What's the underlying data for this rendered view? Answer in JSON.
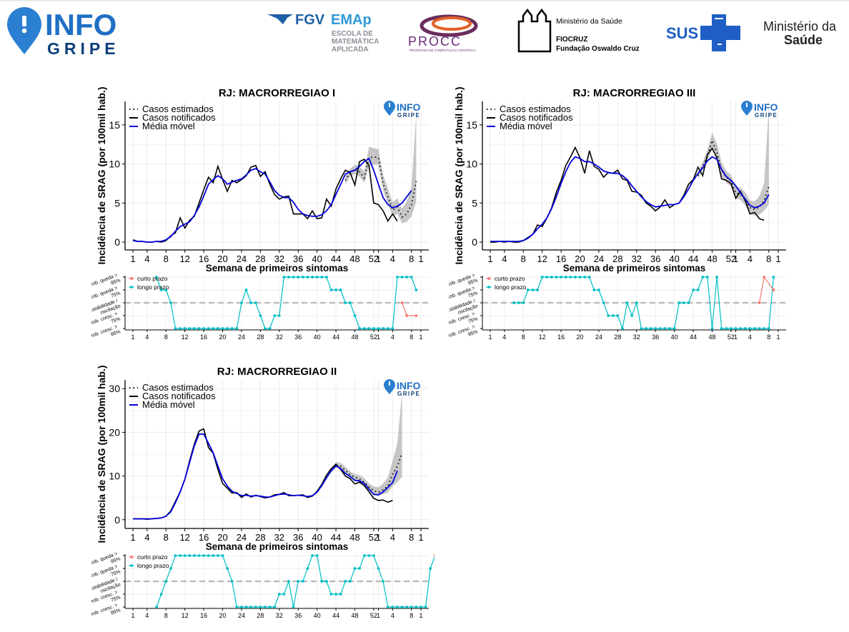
{
  "header": {
    "infogripe_logo": {
      "word1": "INFO",
      "word2": "GRIPE",
      "icon": "location-pin-exclamation-icon"
    },
    "fgv_logo": {
      "brand": "FGV",
      "emap": "EMAp",
      "line1": "ESCOLA DE",
      "line2": "MATEMÁTICA",
      "line3": "APLICADA"
    },
    "procc_logo": {
      "brand": "PROCC",
      "tagline": "PROGRAMA DE COMPUTAÇÃO CIENTÍFICA"
    },
    "fiocruz_logo": {
      "ministry": "Ministério da Saúde",
      "name": "FIOCRUZ",
      "full": "Fundação Oswaldo Cruz"
    },
    "sus_logo": {
      "text": "SUS",
      "icon": "cross-icon"
    },
    "ministerio_logo": {
      "line1": "Ministério da",
      "line2": "Saúde"
    }
  },
  "colors": {
    "estimated": "#000000",
    "notified": "#000000",
    "moving_avg": "#0000dd",
    "band": "#b3b3b3",
    "curto": "#f8766d",
    "longo": "#00bfc4",
    "dashed": "#bdbdbd",
    "brand_blue": "#1f6fc5",
    "brand_navy": "#0d3f7a"
  },
  "legend": {
    "estimated": "Casos estimados",
    "notified": "Casos notificados",
    "moving_avg": "Média móvel"
  },
  "ylabel": "Incidência de SRAG (por 100mil hab.)",
  "xlabel": "Semana de primeiros sintomas",
  "x_ticks": [
    "1",
    "4",
    "8",
    "12",
    "16",
    "20",
    "24",
    "28",
    "32",
    "36",
    "40",
    "44",
    "48",
    "52",
    "1",
    "4",
    "8",
    "1"
  ],
  "trend_levels": [
    "Prob. cresc. > 95%",
    "Prob. cresc. > 75%",
    "Estabilidade / oscilação",
    "Prob. queda > 75%",
    "Prob. queda > 95%"
  ],
  "trend_legend": {
    "curto": "curto prazo",
    "longo": "longo prazo"
  },
  "watermark": {
    "word1": "INFO",
    "word2": "GRIPE"
  },
  "chart_data": [
    {
      "type": "line",
      "title": "RJ: MACRORREGIAO I",
      "ylim": [
        -1,
        18
      ],
      "yticks": [
        0,
        5,
        10,
        15
      ],
      "notified": [
        0.3,
        0.1,
        0.1,
        0.0,
        0.0,
        0.1,
        0.0,
        0.2,
        0.8,
        1.2,
        3.1,
        1.8,
        2.8,
        3.3,
        5.0,
        6.7,
        8.3,
        7.6,
        9.7,
        8.0,
        6.5,
        7.9,
        7.6,
        8.0,
        8.5,
        9.6,
        9.8,
        8.4,
        9.0,
        7.4,
        6.1,
        5.5,
        5.8,
        5.9,
        3.6,
        3.6,
        3.6,
        3.0,
        4.0,
        3.0,
        3.1,
        5.5,
        4.6,
        6.8,
        8.1,
        9.2,
        8.9,
        7.3,
        10.3,
        10.6,
        9.8,
        5.0,
        4.8,
        4.0,
        2.7,
        3.6,
        2.7
      ],
      "moving_avg": [
        0.2,
        0.1,
        0.1,
        0.0,
        0.0,
        0.1,
        0.1,
        0.3,
        0.7,
        1.4,
        2.0,
        2.3,
        2.6,
        3.4,
        4.5,
        5.9,
        7.4,
        8.0,
        8.5,
        8.1,
        7.4,
        7.7,
        7.9,
        8.1,
        8.6,
        9.2,
        9.4,
        9.0,
        8.7,
        7.7,
        6.6,
        6.0,
        5.7,
        5.7,
        5.1,
        4.2,
        3.6,
        3.4,
        3.3,
        3.3,
        3.5,
        4.0,
        4.8,
        6.1,
        7.4,
        8.7,
        9.0,
        9.2,
        9.7,
        10.3,
        10.7,
        9.2,
        7.4,
        5.7,
        4.8,
        4.4,
        4.6,
        5.0,
        5.8,
        6.6
      ],
      "estimated_from": 45,
      "estimated": [
        7.9,
        8.9,
        9.3,
        9.0,
        8.2,
        10.8,
        10.9,
        10.8,
        7.5,
        5.8,
        4.1,
        4.5,
        3.2,
        3.6,
        4.8,
        7.8
      ],
      "band_low": [
        7.4,
        8.4,
        8.7,
        8.4,
        7.6,
        9.7,
        9.9,
        9.9,
        6.6,
        4.9,
        3.3,
        3.6,
        2.4,
        2.6,
        3.3,
        5.2
      ],
      "band_high": [
        8.4,
        9.4,
        9.9,
        9.7,
        9.0,
        12.2,
        12.0,
        11.9,
        8.6,
        6.9,
        5.1,
        5.6,
        4.3,
        5.2,
        7.0,
        16.5
      ],
      "trend_longo": [
        null,
        null,
        null,
        null,
        null,
        4,
        3,
        3,
        2,
        0,
        0,
        0,
        0,
        0,
        0,
        0,
        0,
        0,
        0,
        0,
        0,
        0,
        0,
        2,
        3,
        2,
        2,
        1,
        0,
        0,
        1,
        1,
        4,
        4,
        4,
        4,
        4,
        4,
        4,
        4,
        4,
        4,
        3,
        3,
        3,
        2,
        2,
        1,
        0,
        0,
        0,
        0,
        0,
        0,
        0,
        0,
        4,
        4,
        4,
        4,
        3
      ],
      "trend_curto": [
        null,
        null,
        null,
        null,
        null,
        null,
        null,
        null,
        null,
        null,
        null,
        null,
        null,
        null,
        null,
        null,
        null,
        null,
        null,
        null,
        null,
        null,
        null,
        null,
        null,
        null,
        null,
        null,
        null,
        null,
        null,
        null,
        null,
        null,
        null,
        null,
        null,
        null,
        null,
        null,
        null,
        null,
        null,
        null,
        null,
        null,
        null,
        null,
        null,
        null,
        null,
        null,
        null,
        null,
        null,
        null,
        null,
        2,
        1,
        null,
        1
      ]
    },
    {
      "type": "line",
      "title": "RJ: MACRORREGIAO III",
      "ylim": [
        -1,
        18
      ],
      "yticks": [
        0,
        5,
        10,
        15
      ],
      "notified": [
        0.0,
        0.0,
        0.1,
        0.0,
        0.1,
        0.0,
        0.0,
        0.2,
        0.6,
        1.0,
        2.2,
        2.0,
        3.1,
        4.4,
        6.4,
        7.9,
        9.8,
        10.9,
        12.1,
        10.8,
        8.8,
        11.7,
        9.7,
        9.3,
        8.3,
        8.9,
        8.8,
        9.2,
        8.1,
        7.9,
        6.5,
        6.4,
        6.0,
        5.0,
        4.6,
        4.0,
        4.5,
        5.4,
        4.4,
        4.8,
        5.0,
        6.0,
        7.4,
        8.0,
        9.6,
        8.5,
        11.2,
        12.0,
        10.8,
        8.1,
        7.9,
        7.5,
        5.6,
        6.5,
        5.3,
        3.6,
        3.8,
        3.0,
        2.8
      ],
      "moving_avg": [
        0.1,
        0.1,
        0.1,
        0.1,
        0.1,
        0.1,
        0.1,
        0.2,
        0.5,
        1.0,
        1.7,
        2.3,
        3.1,
        4.3,
        5.8,
        7.5,
        9.0,
        10.2,
        10.9,
        10.7,
        10.3,
        10.3,
        10.0,
        9.6,
        9.1,
        8.9,
        8.8,
        8.8,
        8.5,
        8.0,
        7.2,
        6.5,
        5.8,
        5.2,
        4.8,
        4.5,
        4.6,
        4.7,
        4.8,
        4.8,
        5.0,
        5.8,
        6.8,
        7.9,
        8.8,
        9.5,
        10.4,
        10.9,
        10.6,
        9.3,
        8.4,
        7.9,
        7.2,
        6.3,
        5.5,
        4.7,
        4.4,
        4.6,
        5.0,
        6.1
      ],
      "estimated_from": 44,
      "estimated": [
        8.5,
        9.7,
        11.0,
        13.0,
        11.5,
        9.2,
        8.3,
        7.8,
        6.3,
        6.1,
        5.5,
        4.4,
        4.2,
        4.5,
        5.3,
        7.1
      ],
      "band_low": [
        8.1,
        9.2,
        10.3,
        12.0,
        10.5,
        8.4,
        7.6,
        7.1,
        5.6,
        5.4,
        4.7,
        3.7,
        3.4,
        3.5,
        4.0,
        4.8
      ],
      "band_high": [
        9.0,
        10.3,
        11.8,
        14.0,
        12.6,
        10.2,
        9.1,
        8.6,
        7.1,
        7.0,
        6.4,
        5.3,
        5.2,
        5.9,
        7.5,
        17.2
      ],
      "trend_longo": [
        null,
        null,
        null,
        null,
        null,
        2,
        2,
        2,
        3,
        3,
        3,
        4,
        4,
        4,
        4,
        4,
        4,
        4,
        4,
        4,
        4,
        4,
        3,
        3,
        2,
        1,
        1,
        1,
        0,
        2,
        1,
        2,
        0,
        0,
        0,
        0,
        0,
        0,
        0,
        0,
        2,
        2,
        2,
        3,
        3,
        4,
        4,
        0,
        4,
        0,
        0,
        0,
        0,
        0,
        0,
        0,
        0,
        0,
        0,
        0,
        4
      ],
      "trend_curto": [
        null,
        null,
        null,
        null,
        null,
        null,
        null,
        null,
        null,
        null,
        null,
        null,
        null,
        null,
        null,
        null,
        null,
        null,
        null,
        null,
        null,
        null,
        null,
        null,
        null,
        null,
        null,
        null,
        null,
        null,
        null,
        null,
        null,
        null,
        null,
        null,
        null,
        null,
        null,
        null,
        null,
        null,
        null,
        null,
        null,
        null,
        null,
        null,
        null,
        null,
        null,
        null,
        null,
        null,
        null,
        null,
        null,
        2,
        4,
        null,
        3
      ]
    },
    {
      "type": "line",
      "title": "RJ: MACRORREGIAO II",
      "ylim": [
        -2,
        32
      ],
      "yticks": [
        0,
        10,
        20,
        30
      ],
      "notified": [
        0.2,
        0.2,
        0.2,
        0.1,
        0.2,
        0.3,
        0.4,
        0.8,
        2.0,
        4.2,
        6.4,
        9.3,
        13.5,
        17.3,
        20.3,
        20.8,
        16.5,
        15.2,
        11.5,
        8.3,
        7.2,
        6.1,
        6.2,
        5.1,
        5.9,
        5.2,
        5.6,
        5.3,
        5.0,
        5.2,
        5.7,
        5.8,
        6.2,
        5.5,
        5.5,
        5.6,
        5.7,
        5.1,
        5.4,
        6.5,
        8.1,
        10.2,
        11.7,
        12.7,
        11.5,
        10.0,
        9.4,
        8.2,
        8.6,
        7.8,
        6.4,
        4.9,
        4.4,
        4.5,
        4.0,
        4.4
      ],
      "moving_avg": [
        0.2,
        0.2,
        0.2,
        0.2,
        0.2,
        0.3,
        0.4,
        0.8,
        1.8,
        3.9,
        6.3,
        9.3,
        13.1,
        16.9,
        19.6,
        19.6,
        17.5,
        15.3,
        12.3,
        9.4,
        7.7,
        6.5,
        6.0,
        5.5,
        5.6,
        5.4,
        5.5,
        5.4,
        5.2,
        5.2,
        5.5,
        5.8,
        5.9,
        5.7,
        5.5,
        5.6,
        5.5,
        5.3,
        5.5,
        6.3,
        7.8,
        9.6,
        11.2,
        12.3,
        11.7,
        10.6,
        9.9,
        9.0,
        8.9,
        8.3,
        7.0,
        5.8,
        5.7,
        6.4,
        7.4,
        8.5,
        11.2
      ],
      "estimated_from": 42,
      "estimated": [
        11.2,
        12.5,
        12.2,
        11.3,
        10.3,
        9.7,
        9.3,
        8.6,
        7.5,
        6.6,
        6.3,
        6.9,
        7.7,
        10.4,
        12.2,
        15.3
      ],
      "band_low": [
        10.8,
        12.0,
        11.6,
        10.6,
        9.6,
        9.0,
        8.6,
        7.9,
        6.8,
        5.9,
        5.5,
        5.8,
        6.2,
        7.7,
        8.6,
        9.8
      ],
      "band_high": [
        11.7,
        13.2,
        13.0,
        12.1,
        11.1,
        10.4,
        10.2,
        9.5,
        8.3,
        7.6,
        7.4,
        8.3,
        9.7,
        13.5,
        17.5,
        29.5
      ],
      "trend_longo": [
        null,
        null,
        null,
        null,
        null,
        0,
        1,
        2,
        3,
        4,
        4,
        4,
        4,
        4,
        4,
        4,
        4,
        4,
        4,
        4,
        3,
        2,
        0,
        0,
        0,
        0,
        0,
        0,
        0,
        0,
        0,
        1,
        1,
        2,
        0,
        2,
        2,
        3,
        4,
        4,
        2,
        2,
        1,
        1,
        1,
        2,
        2,
        3,
        3,
        4,
        4,
        4,
        3,
        2,
        0,
        0,
        0,
        0,
        0,
        0,
        0,
        0,
        0,
        3,
        4,
        4
      ],
      "trend_curto": [
        null,
        null,
        null,
        null,
        null,
        null,
        null,
        null,
        null,
        null,
        null,
        null,
        null,
        null,
        null,
        null,
        null,
        null,
        null,
        null,
        null,
        null,
        null,
        null,
        null,
        null,
        null,
        null,
        null,
        null,
        null,
        null,
        null,
        null,
        null,
        null,
        null,
        null,
        null,
        null,
        null,
        null,
        null,
        null,
        null,
        null,
        null,
        null,
        null,
        null,
        null,
        null,
        null,
        null,
        null,
        null,
        null,
        null,
        null,
        null,
        null,
        null,
        null,
        null,
        4,
        3,
        3
      ]
    }
  ]
}
